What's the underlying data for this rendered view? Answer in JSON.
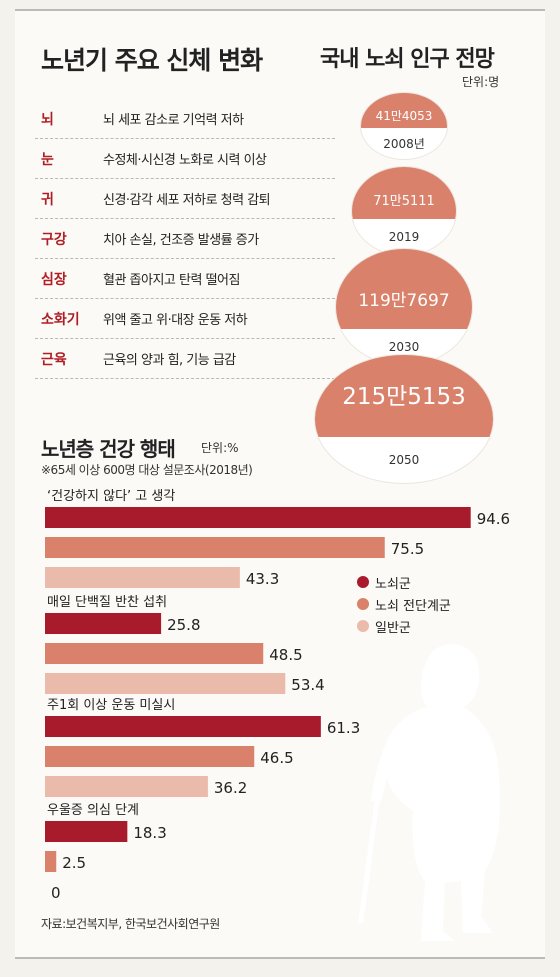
{
  "body_changes": {
    "title": "노년기 주요 신체 변화",
    "items": [
      {
        "organ": "뇌",
        "desc": "뇌 세포 감소로 기억력 저하"
      },
      {
        "organ": "눈",
        "desc": "수정체·시신경 노화로 시력 이상"
      },
      {
        "organ": "귀",
        "desc": "신경·감각 세포 저하로 청력 감퇴"
      },
      {
        "organ": "구강",
        "desc": "치아 손실, 건조증 발생률 증가"
      },
      {
        "organ": "심장",
        "desc": "혈관 좁아지고 탄력 떨어짐"
      },
      {
        "organ": "소화기",
        "desc": "위액 줄고 위·대장 운동 저하"
      },
      {
        "organ": "근육",
        "desc": "근육의 양과 힘, 기능 급감"
      }
    ]
  },
  "population": {
    "title": "국내 노쇠 인구 전망",
    "unit": "단위:명",
    "items": [
      {
        "year": "2008년",
        "value_label": "41만4053"
      },
      {
        "year": "2019",
        "value_label": "71만5111"
      },
      {
        "year": "2030",
        "value_label": "119만7697"
      },
      {
        "year": "2050",
        "value_label": "215만5153"
      }
    ]
  },
  "health": {
    "title": "노년층 건강 행태",
    "unit": "단위:%",
    "note": "※65세 이상 600명 대상 설문조사(2018년)"
  },
  "colors": {
    "dark_red": "#a81b2c",
    "mid_salmon": "#d9816b",
    "light_pink": "#eabbaa",
    "organ_red": "#b01d24",
    "silhouette": "#ffffff"
  },
  "chart_data": [
    {
      "type": "bar",
      "orientation": "horizontal",
      "groups": [
        "‘건강하지 않다’ 고 생각",
        "매일 단백질 반찬 섭취",
        "주1회 이상 운동 미실시",
        "우울증 의심 단계"
      ],
      "series": [
        {
          "name": "노쇠군",
          "values": [
            94.6,
            25.8,
            61.3,
            18.3
          ]
        },
        {
          "name": "노쇠 전단계군",
          "values": [
            75.5,
            48.5,
            46.5,
            2.5
          ]
        },
        {
          "name": "일반군",
          "values": [
            43.3,
            53.4,
            36.2,
            0
          ]
        }
      ],
      "xlim": [
        0,
        100
      ],
      "legend": "right",
      "grid": false
    }
  ],
  "source": "자료:보건복지부, 한국보건사회연구원"
}
